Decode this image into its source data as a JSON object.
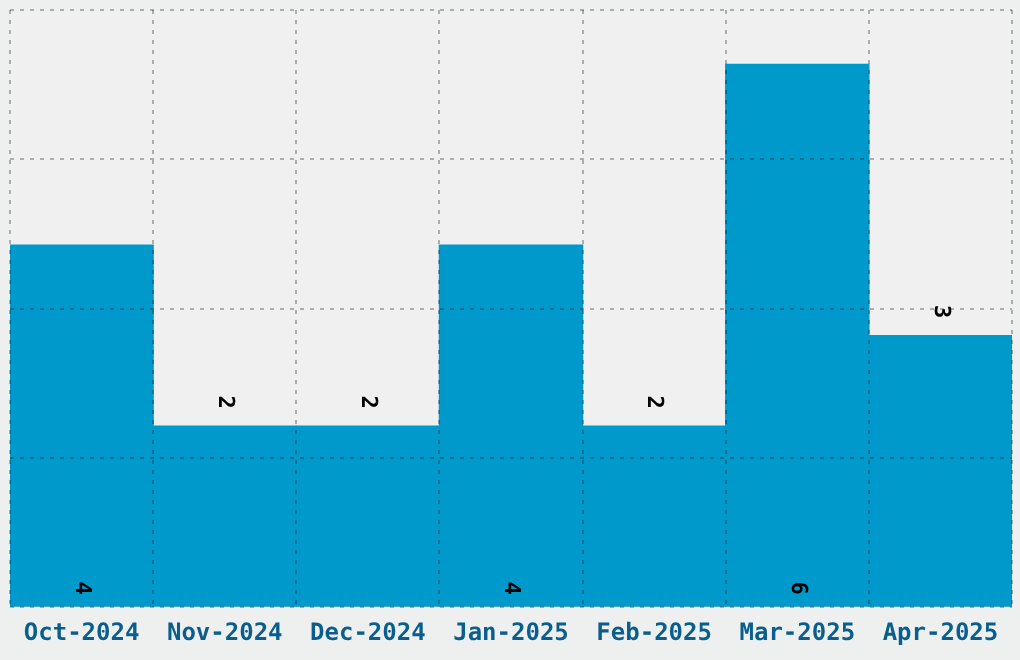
{
  "chart_data": {
    "type": "bar",
    "categories": [
      "Oct-2024",
      "Nov-2024",
      "Dec-2024",
      "Jan-2025",
      "Feb-2025",
      "Mar-2025",
      "Apr-2025"
    ],
    "values": [
      4,
      2,
      2,
      4,
      2,
      6,
      3
    ],
    "color": "#0099cc",
    "ylim": [
      0,
      6.6
    ],
    "yticks": [
      {
        "value": 0,
        "label": null
      },
      {
        "value": 1.65,
        "label": null
      },
      {
        "value": 3.3,
        "label": null
      },
      {
        "value": 4.95,
        "label": null
      },
      {
        "value": 6.6,
        "label": null
      }
    ],
    "tick_labels": "x",
    "grid": true,
    "data_labels": true
  }
}
